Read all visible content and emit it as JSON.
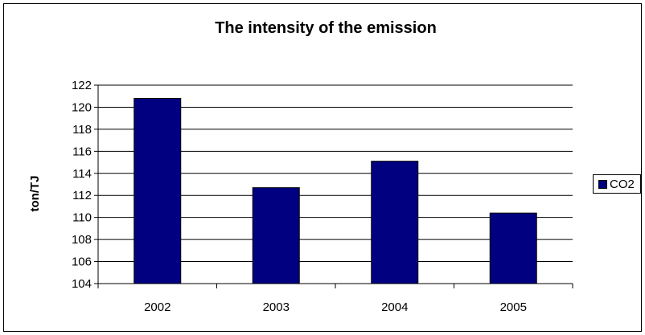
{
  "chart_data": {
    "type": "bar",
    "title": "The intensity of the emission",
    "xlabel": "",
    "ylabel": "ton/TJ",
    "categories": [
      "2002",
      "2003",
      "2004",
      "2005"
    ],
    "series": [
      {
        "name": "CO2",
        "values": [
          120.8,
          112.7,
          115.1,
          110.4
        ]
      }
    ],
    "ylim": [
      104,
      122
    ],
    "yticks": [
      104,
      106,
      108,
      110,
      112,
      114,
      116,
      118,
      120,
      122
    ],
    "grid": true,
    "legend": "right",
    "bar_color": "#000080",
    "grid_color": "#000000"
  }
}
